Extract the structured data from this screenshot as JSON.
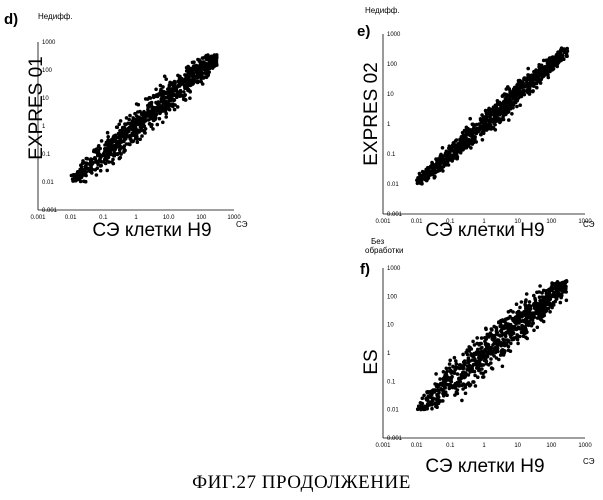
{
  "caption": "ФИГ.27  ПРОДОЛЖЕНИЕ",
  "chart_data": [
    {
      "type": "scatter",
      "panel_label": "d)",
      "corner_label": [
        "Недифф."
      ],
      "ylabel": "EXPRES 01",
      "xlabel": "СЭ клетки H9",
      "x_unit_label": "СЭ",
      "x_scale": "log",
      "y_scale": "log",
      "xlim": [
        0.001,
        1000
      ],
      "ylim": [
        0.001,
        1000
      ],
      "x_ticks": [
        "0.001",
        "0.01",
        "0.1",
        "1",
        "10.0",
        "100",
        "1000"
      ],
      "y_ticks": [
        "0.001",
        "0.01",
        "0.1",
        "1",
        "10",
        "100",
        "1000"
      ],
      "point_color": "#000000",
      "grid": false,
      "cloud": {
        "x_range": [
          0.01,
          300
        ],
        "y_range": [
          0.01,
          300
        ],
        "correlation": "positive",
        "spread_decades": 0.6
      }
    },
    {
      "type": "scatter",
      "panel_label": "e)",
      "corner_label": [
        "Недифф."
      ],
      "ylabel": "EXPRES 02",
      "xlabel": "СЭ клетки H9",
      "x_unit_label": "СЭ",
      "x_scale": "log",
      "y_scale": "log",
      "xlim": [
        0.001,
        1000
      ],
      "ylim": [
        0.001,
        1000
      ],
      "x_ticks": [
        "0.001",
        "0.01",
        "0.1",
        "1",
        "10",
        "100",
        "1000"
      ],
      "y_ticks": [
        "0.001",
        "0.01",
        "0.1",
        "1",
        "10",
        "100",
        "1000"
      ],
      "point_color": "#000000",
      "grid": false,
      "cloud": {
        "x_range": [
          0.01,
          300
        ],
        "y_range": [
          0.01,
          300
        ],
        "correlation": "positive",
        "spread_decades": 0.4
      }
    },
    {
      "type": "scatter",
      "panel_label": "f)",
      "corner_label": [
        "Без",
        "обработки"
      ],
      "ylabel": "ES",
      "xlabel": "СЭ клетки H9",
      "x_unit_label": "СЭ",
      "x_scale": "log",
      "y_scale": "log",
      "xlim": [
        0.001,
        1000
      ],
      "ylim": [
        0.001,
        1000
      ],
      "x_ticks": [
        "0.001",
        "0.01",
        "0.1",
        "1",
        "10",
        "100",
        "1000"
      ],
      "y_ticks": [
        "0.001",
        "0.01",
        "0.1",
        "1",
        "10",
        "100",
        "1000"
      ],
      "point_color": "#000000",
      "grid": false,
      "cloud": {
        "x_range": [
          0.01,
          300
        ],
        "y_range": [
          0.01,
          300
        ],
        "correlation": "positive",
        "spread_decades": 0.7
      }
    }
  ]
}
